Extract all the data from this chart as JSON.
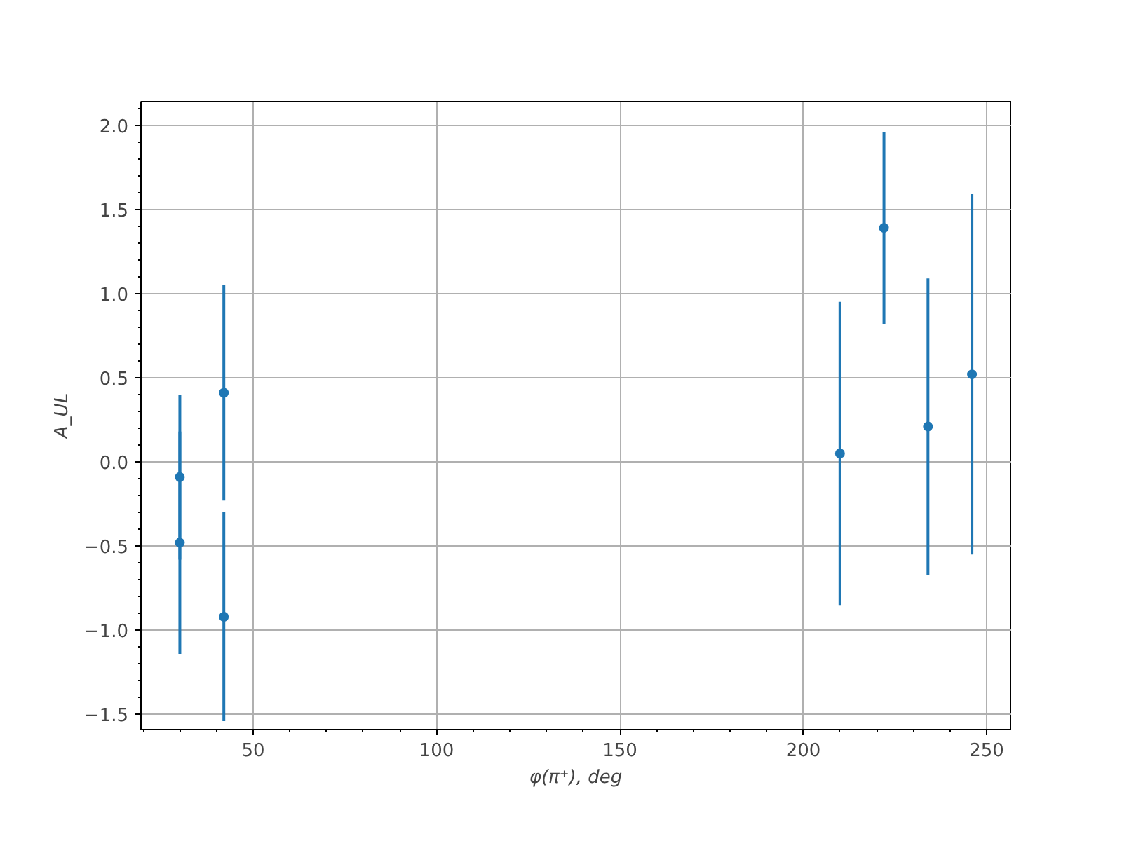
{
  "chart_data": {
    "type": "scatter",
    "xlabel": "φ(π⁺), deg",
    "ylabel": "A_UL",
    "x": [
      30,
      30,
      42,
      42,
      210,
      222,
      234,
      246
    ],
    "series": [
      {
        "color": "#1f77b4",
        "values": [
          -0.09,
          -0.48,
          0.41,
          -0.92,
          0.05,
          1.39,
          0.21,
          0.52
        ],
        "errors": [
          0.49,
          0.66,
          0.64,
          0.62,
          0.9,
          0.57,
          0.88,
          1.07
        ]
      }
    ],
    "xlim": [
      19.4,
      256.5
    ],
    "ylim": [
      -1.59,
      2.14
    ],
    "xticks": [
      50,
      100,
      150,
      200,
      250
    ],
    "yticks": [
      {
        "value": -1.5,
        "label": "−1.5"
      },
      {
        "value": -1,
        "label": "−1.0"
      },
      {
        "value": -0.5,
        "label": "−0.5"
      },
      {
        "value": 0,
        "label": "0.0"
      },
      0.5,
      {
        "value": 1,
        "label": "1.0"
      },
      1.5,
      {
        "value": 2,
        "label": "2.0"
      }
    ],
    "grid": true,
    "marker": "circle"
  }
}
